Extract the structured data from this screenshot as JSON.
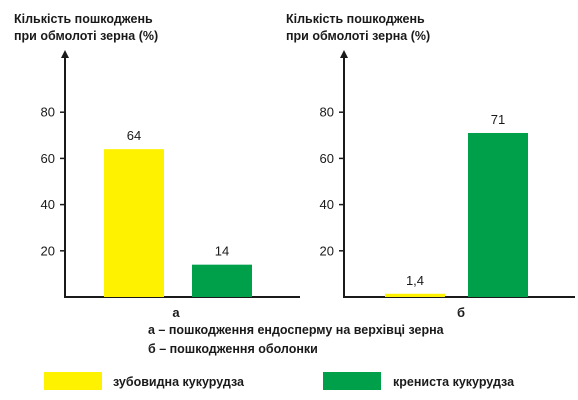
{
  "chart_data": [
    {
      "type": "bar",
      "title_lines": [
        "Кількість пошкоджень",
        "при обмолоті зерна (%)"
      ],
      "ylabel": "Кількість пошкоджень при обмолоті зерна (%)",
      "yticks": [
        20,
        40,
        60,
        80
      ],
      "ylim": [
        0,
        100
      ],
      "categories": [
        "а"
      ],
      "series": [
        {
          "name": "зубовидна кукурудза",
          "values": [
            64
          ],
          "labels": [
            "64"
          ]
        },
        {
          "name": "крениста кукурудза",
          "values": [
            14
          ],
          "labels": [
            "14"
          ]
        }
      ]
    },
    {
      "type": "bar",
      "title_lines": [
        "Кількість пошкоджень",
        "при обмолоті зерна (%)"
      ],
      "ylabel": "Кількість пошкоджень при обмолоті зерна (%)",
      "yticks": [
        20,
        40,
        60,
        80
      ],
      "ylim": [
        0,
        100
      ],
      "categories": [
        "б"
      ],
      "series": [
        {
          "name": "зубовидна кукурудза",
          "values": [
            1.4
          ],
          "labels": [
            "1,4"
          ]
        },
        {
          "name": "крениста кукурудза",
          "values": [
            71
          ],
          "labels": [
            "71"
          ]
        }
      ]
    }
  ],
  "notes": [
    "а – пошкодження ендосперму на верхівці зерна",
    "б – пошкодження оболонки"
  ],
  "legend": [
    {
      "label": "зубовидна кукурудза",
      "color": "#fff200"
    },
    {
      "label": "крениста кукурудза",
      "color": "#00a04a"
    }
  ],
  "colors": {
    "series_1": "#fff200",
    "series_2": "#00a04a",
    "axis": "#1a1a1a"
  }
}
